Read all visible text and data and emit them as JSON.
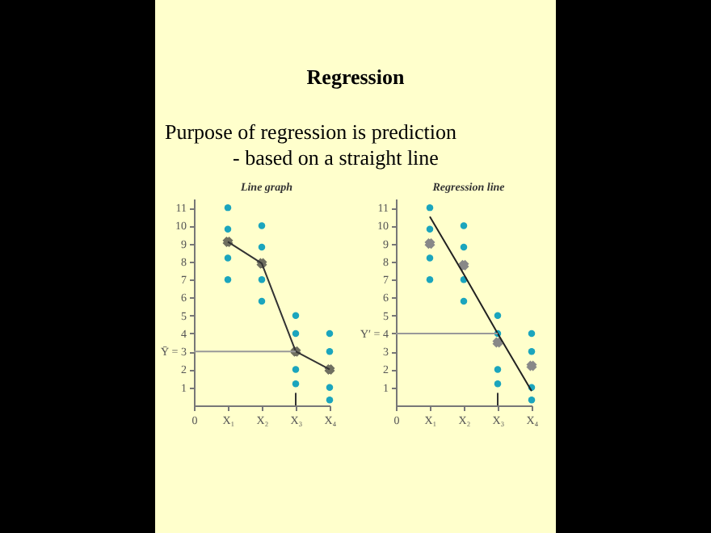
{
  "chart_data": [
    {
      "type": "other",
      "title": "Regression",
      "annotations": [
        "Purpose of regression is prediction",
        "-  based on a straight line"
      ]
    },
    {
      "type": "scatter",
      "title": "Line graph",
      "categories": [
        "0",
        "X₁",
        "X₂",
        "X₃",
        "X₄"
      ],
      "ylim": [
        0,
        11.5
      ],
      "yticks": [
        1,
        2,
        {
          "value": 3,
          "label": "Ȳ = 3"
        },
        4,
        5,
        6,
        7,
        8,
        9,
        10,
        11
      ],
      "series": [
        {
          "type": "scatter",
          "marker": "circle",
          "color": "#1ba5bd",
          "x": [
            "X₁",
            "X₁",
            "X₁",
            "X₁",
            "X₂",
            "X₂",
            "X₂",
            "X₂",
            "X₃",
            "X₃",
            "X₃",
            "X₃",
            "X₄",
            "X₄",
            "X₄",
            "X₄"
          ],
          "values": [
            11,
            9.8,
            8.2,
            7,
            10,
            8.8,
            7,
            5.8,
            5,
            4,
            2,
            1.2,
            4,
            3,
            1,
            0.3
          ]
        },
        {
          "type": "line",
          "marker": "cross",
          "color": "#333333",
          "x": [
            "X₁",
            "X₂",
            "X₃",
            "X₄"
          ],
          "values": [
            9.1,
            7.9,
            3,
            2
          ]
        },
        {
          "type": "line",
          "marker": "none",
          "color": "#999999",
          "x": [
            "X₃",
            "0"
          ],
          "values": [
            3,
            3
          ]
        },
        {
          "type": "line",
          "marker": "none",
          "color": "#333333",
          "x": [
            "X₃",
            "X₃"
          ],
          "values": [
            0,
            0.7
          ]
        }
      ]
    },
    {
      "type": "scatter",
      "title": "Regression line",
      "categories": [
        "0",
        "X₁",
        "X₂",
        "X₃",
        "X₄"
      ],
      "ylim": [
        0,
        11.5
      ],
      "yticks": [
        1,
        2,
        3,
        {
          "value": 4,
          "label": "Y′ = 4"
        },
        5,
        6,
        7,
        8,
        9,
        10,
        11
      ],
      "series": [
        {
          "type": "scatter",
          "marker": "circle",
          "color": "#1ba5bd",
          "x": [
            "X₁",
            "X₁",
            "X₁",
            "X₁",
            "X₂",
            "X₂",
            "X₂",
            "X₂",
            "X₃",
            "X₃",
            "X₃",
            "X₃",
            "X₄",
            "X₄",
            "X₄",
            "X₄"
          ],
          "values": [
            11,
            9.8,
            8.2,
            7,
            10,
            8.8,
            7,
            5.8,
            5,
            4,
            2,
            1.2,
            4,
            3,
            1,
            0.3
          ]
        },
        {
          "type": "scatter",
          "marker": "cross",
          "color": "#888888",
          "x": [
            "X₁",
            "X₂",
            "X₃",
            "X₄"
          ],
          "values": [
            9,
            7.8,
            3.5,
            2.2
          ]
        },
        {
          "type": "line",
          "marker": "none",
          "color": "#222222",
          "x": [
            "X₁",
            "X₂",
            "X₃",
            "X₄"
          ],
          "values": [
            10.5,
            7.3,
            4,
            0.8
          ]
        },
        {
          "type": "line",
          "marker": "none",
          "color": "#999999",
          "x": [
            "X₃",
            "0"
          ],
          "values": [
            4,
            4
          ]
        },
        {
          "type": "line",
          "marker": "none",
          "color": "#333333",
          "x": [
            "X₃",
            "X₃"
          ],
          "values": [
            0,
            0.7
          ]
        }
      ]
    }
  ]
}
